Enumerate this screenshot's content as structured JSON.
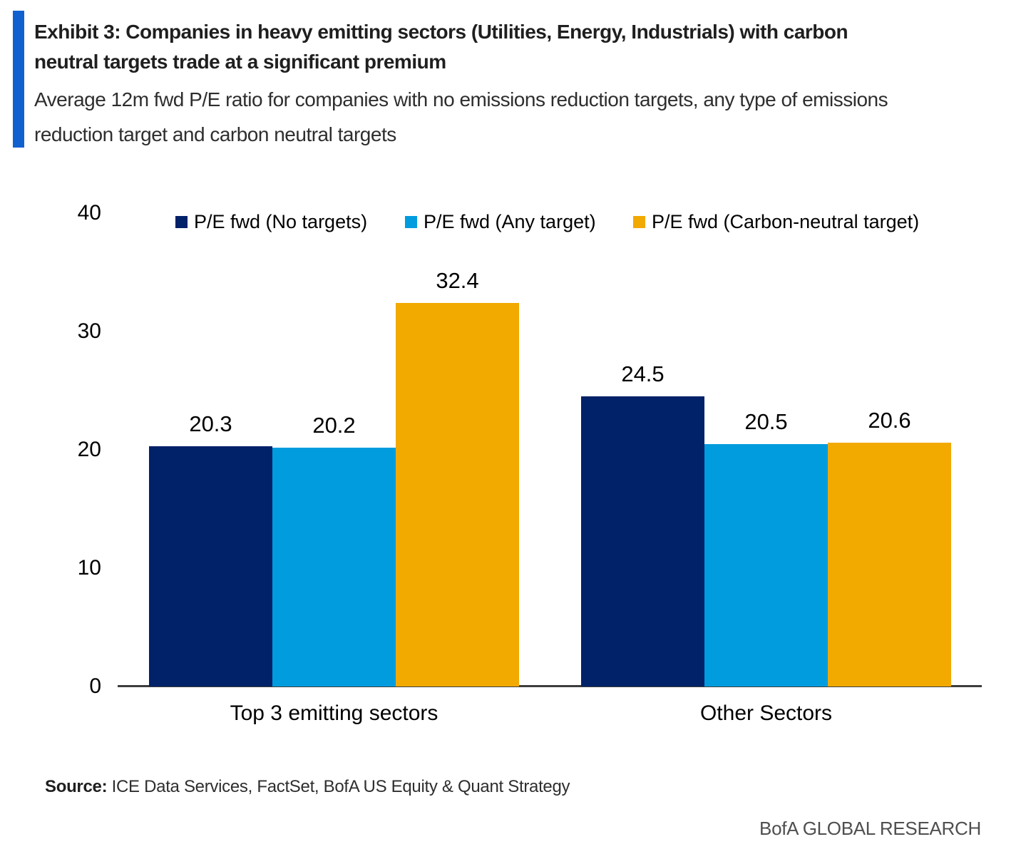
{
  "header": {
    "accent_color": "#1160D0",
    "title_lines": [
      "Exhibit 3: Companies in heavy emitting sectors (Utilities, Energy, Industrials) with carbon",
      "neutral targets trade at a significant premium"
    ],
    "subtitle_lines": [
      "Average 12m fwd P/E ratio for companies with no emissions reduction targets, any type of emissions",
      "reduction target and carbon neutral targets"
    ]
  },
  "chart_data": {
    "type": "bar",
    "categories": [
      "Top 3 emitting sectors",
      "Other Sectors"
    ],
    "series": [
      {
        "name": "P/E fwd (No targets)",
        "color": "#012169",
        "values": [
          20.3,
          24.5
        ]
      },
      {
        "name": "P/E fwd (Any target)",
        "color": "#009CDE",
        "values": [
          20.2,
          20.5
        ]
      },
      {
        "name": "P/E fwd (Carbon-neutral target)",
        "color": "#F2A900",
        "values": [
          32.4,
          20.6
        ]
      }
    ],
    "ylim": [
      0,
      40
    ],
    "yticks": [
      0,
      10,
      20,
      30,
      40
    ],
    "grid": false,
    "legend_position": "top",
    "value_label_decimals": 1,
    "axis_color": "#3d3d3d"
  },
  "footer": {
    "source_label": "Source:",
    "source_text": " ICE Data Services, FactSet, BofA US Equity & Quant Strategy",
    "attribution": "BofA GLOBAL RESEARCH"
  }
}
